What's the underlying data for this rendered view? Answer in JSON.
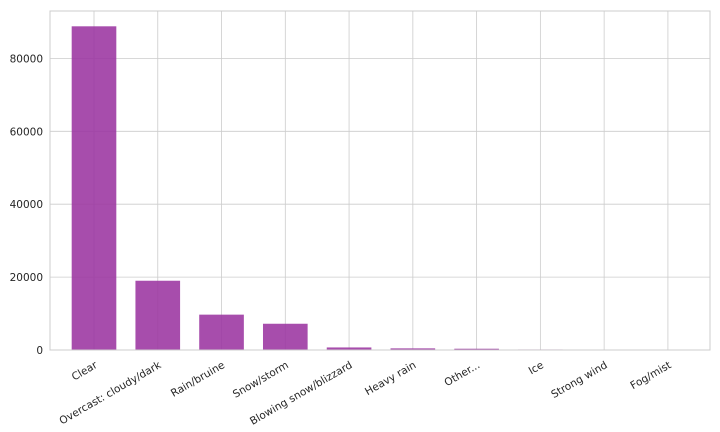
{
  "chart_data": {
    "type": "bar",
    "title": "",
    "xlabel": "",
    "ylabel": "",
    "categories": [
      "Clear",
      "Overcast: cloudy/dark",
      "Rain/bruine",
      "Snow/storm",
      "Blowing snow/blizzard",
      "Heavy rain",
      "Other...",
      "Ice",
      "Strong wind",
      "Fog/mist"
    ],
    "values": [
      88800,
      19000,
      9700,
      7200,
      700,
      450,
      350,
      150,
      120,
      100
    ],
    "ylim": [
      0,
      93000
    ],
    "yticks": [
      0,
      20000,
      40000,
      60000,
      80000
    ],
    "grid": true,
    "bar_color": "#9b34a0"
  }
}
